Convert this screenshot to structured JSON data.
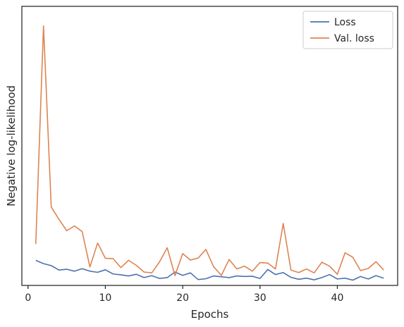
{
  "chart_data": {
    "type": "line",
    "title": "",
    "xlabel": "Epochs",
    "ylabel": "Negative log-likelihood",
    "x": [
      1,
      2,
      3,
      4,
      5,
      6,
      7,
      8,
      9,
      10,
      11,
      12,
      13,
      14,
      15,
      16,
      17,
      18,
      19,
      20,
      21,
      22,
      23,
      24,
      25,
      26,
      27,
      28,
      29,
      30,
      31,
      32,
      33,
      34,
      35,
      36,
      37,
      38,
      39,
      40,
      41,
      42,
      43,
      44,
      45,
      46
    ],
    "xlim": [
      -0.8,
      47.8
    ],
    "ylim": [
      0,
      100
    ],
    "xticks": [
      0,
      10,
      20,
      30,
      40
    ],
    "xtick_labels": [
      "0",
      "10",
      "20",
      "30",
      "40"
    ],
    "y_tick_labels_shown": false,
    "grid": false,
    "legend_position": "top-right",
    "series": [
      {
        "name": "Loss",
        "color": "#4c72b0",
        "values": [
          9.0,
          7.8,
          7.1,
          5.5,
          5.8,
          5.1,
          6.0,
          5.1,
          4.7,
          5.6,
          4.1,
          3.8,
          3.4,
          4.0,
          2.8,
          3.5,
          2.5,
          2.8,
          4.8,
          3.6,
          4.5,
          2.1,
          2.4,
          3.4,
          3.1,
          2.8,
          3.4,
          3.2,
          3.3,
          2.5,
          5.7,
          3.9,
          4.6,
          2.9,
          2.2,
          2.6,
          2.0,
          2.8,
          3.9,
          2.3,
          2.6,
          1.9,
          3.2,
          2.3,
          3.5,
          2.6
        ]
      },
      {
        "name": "Val. loss",
        "color": "#dd8452",
        "values": [
          14.8,
          93.0,
          28.1,
          23.7,
          19.6,
          21.3,
          19.3,
          6.6,
          15.2,
          9.7,
          9.6,
          6.4,
          9.0,
          7.2,
          4.8,
          4.5,
          8.4,
          13.5,
          3.5,
          11.4,
          9.1,
          9.8,
          12.9,
          6.7,
          3.6,
          9.3,
          5.9,
          6.9,
          5.1,
          8.2,
          8.0,
          5.9,
          22.2,
          5.5,
          4.6,
          5.9,
          4.5,
          8.3,
          6.9,
          4.0,
          11.7,
          10.1,
          5.3,
          6.1,
          8.5,
          5.5
        ]
      }
    ]
  }
}
